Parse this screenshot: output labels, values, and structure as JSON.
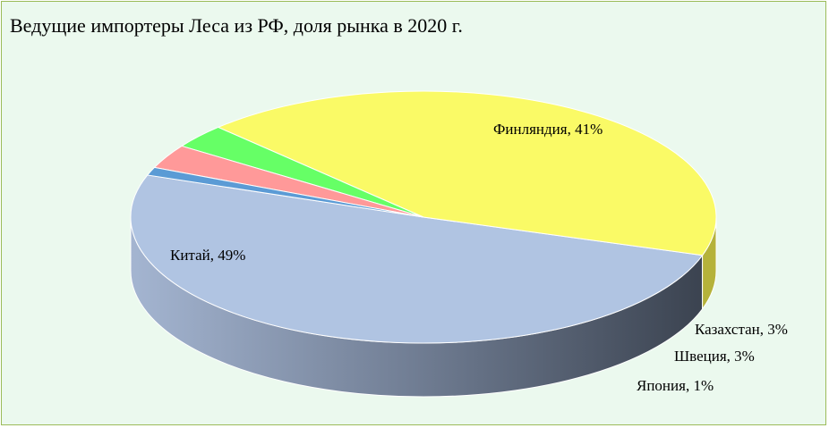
{
  "chart_data": {
    "type": "pie",
    "title": "Ведущие импортеры Леса из РФ, доля рынка в 2020 г.",
    "series": [
      {
        "label": "Китай, 49%",
        "category": "Китай",
        "value": 49,
        "color": "#b0c4e2",
        "side": "#8a98b0"
      },
      {
        "label": "Финляндия, 41%",
        "category": "Финляндия",
        "value": 41,
        "color": "#fafa66",
        "side": "#b5b23a"
      },
      {
        "label": "Казахстан, 3%",
        "category": "Казахстан",
        "value": 3,
        "color": "#66ff66",
        "side": "#2a6b28"
      },
      {
        "label": "Швеция, 3%",
        "category": "Швеция",
        "value": 3,
        "color": "#ff9999",
        "side": "#6b3a3a"
      },
      {
        "label": "Япония, 1%",
        "category": "Япония",
        "value": 1,
        "color": "#5b9bd5",
        "side": "#1f3a56"
      }
    ]
  }
}
